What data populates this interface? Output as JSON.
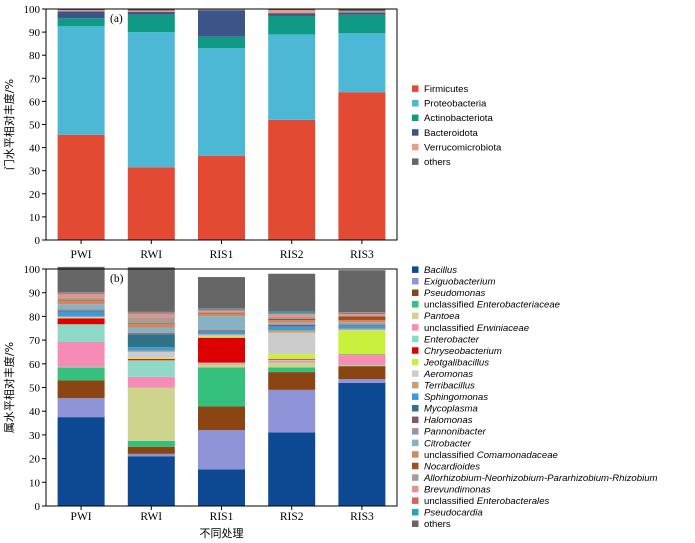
{
  "chart_data": [
    {
      "panel_label": "(a)",
      "type": "bar",
      "stacked": true,
      "ylabel": "门水平相对丰度/%",
      "ylim": [
        0,
        100
      ],
      "yticks": [
        0,
        10,
        20,
        30,
        40,
        50,
        60,
        70,
        80,
        90,
        100
      ],
      "categories": [
        "PWI",
        "RWI",
        "RIS1",
        "RIS2",
        "RIS3"
      ],
      "series": [
        {
          "name": "Firmicutes",
          "color": "#E34A33",
          "values": [
            45.5,
            31.5,
            36.5,
            52,
            64
          ]
        },
        {
          "name": "Proteobacteria",
          "color": "#4DB8D6",
          "values": [
            47,
            58.5,
            46.5,
            37,
            25.5
          ]
        },
        {
          "name": "Actinobacteriota",
          "color": "#0E9A84",
          "values": [
            3.5,
            7.5,
            5,
            8,
            8
          ]
        },
        {
          "name": "Bacteroidota",
          "color": "#3C5588",
          "values": [
            3,
            1.2,
            11.5,
            1.2,
            1
          ]
        },
        {
          "name": "Verrucomicrobiota",
          "color": "#F09A84",
          "values": [
            0.5,
            0.6,
            0.2,
            1.3,
            0.5
          ]
        },
        {
          "name": "others",
          "color": "#666666",
          "values": [
            0.5,
            0.7,
            0.3,
            0.5,
            1
          ]
        }
      ]
    },
    {
      "panel_label": "(b)",
      "type": "bar",
      "stacked": true,
      "ylabel": "属水平相对丰度/%",
      "xlabel": "不同处理",
      "ylim": [
        0,
        100
      ],
      "yticks": [
        0,
        10,
        20,
        30,
        40,
        50,
        60,
        70,
        80,
        90,
        100
      ],
      "categories": [
        "PWI",
        "RWI",
        "RIS1",
        "RIS2",
        "RIS3"
      ],
      "series": [
        {
          "prefix": "",
          "name": "Bacillus",
          "italic": true,
          "color": "#0E4A94",
          "values": [
            37.5,
            21,
            15.5,
            31,
            52
          ]
        },
        {
          "prefix": "",
          "name": "Exiguobacterium",
          "italic": true,
          "color": "#8F94D9",
          "values": [
            8,
            1,
            16.5,
            18,
            1.5
          ]
        },
        {
          "prefix": "",
          "name": "Pseudomonas",
          "italic": true,
          "color": "#8B4513",
          "values": [
            7.5,
            3,
            10,
            7.5,
            5.5
          ]
        },
        {
          "prefix": "unclassified ",
          "name": "Enterobacteriaceae",
          "italic": true,
          "color": "#35C07D",
          "values": [
            5.5,
            2.5,
            16.5,
            2,
            0.2
          ]
        },
        {
          "prefix": "",
          "name": "Pantoea",
          "italic": true,
          "color": "#CED48C",
          "values": [
            0.2,
            22.5,
            1.2,
            2,
            0.3
          ]
        },
        {
          "prefix": "unclassified ",
          "name": "Erwiniaceae",
          "italic": true,
          "color": "#F48CB6",
          "values": [
            10.5,
            4.5,
            0.5,
            0.8,
            4
          ]
        },
        {
          "prefix": "",
          "name": "Enterobacter",
          "italic": true,
          "color": "#8ED8C8",
          "values": [
            7.5,
            7,
            0.3,
            0.5,
            0.3
          ]
        },
        {
          "prefix": "",
          "name": "Chryseobacterium",
          "italic": true,
          "color": "#DD0000",
          "values": [
            2.5,
            0.5,
            10.5,
            0.3,
            0.2
          ]
        },
        {
          "prefix": "",
          "name": "Jeotgalibacillus",
          "italic": true,
          "color": "#C8F03C",
          "values": [
            0.2,
            0.5,
            0.5,
            2,
            10
          ]
        },
        {
          "prefix": "",
          "name": "Aeromonas",
          "italic": true,
          "color": "#CCCCCC",
          "values": [
            0.3,
            2.5,
            0.5,
            9,
            0.3
          ]
        },
        {
          "prefix": "",
          "name": "Terribacillus",
          "italic": true,
          "color": "#C8A070",
          "values": [
            0.3,
            0.5,
            0.5,
            1,
            0.5
          ]
        },
        {
          "prefix": "",
          "name": "Sphingomonas",
          "italic": true,
          "color": "#3B9CDB",
          "values": [
            2,
            1.5,
            1,
            1.5,
            1.2
          ]
        },
        {
          "prefix": "",
          "name": "Mycoplasma",
          "italic": true,
          "color": "#2E7388",
          "values": [
            0.3,
            5.5,
            0.3,
            0.3,
            0.2
          ]
        },
        {
          "prefix": "",
          "name": "Halomonas",
          "italic": true,
          "color": "#7F5A63",
          "values": [
            0.3,
            0.3,
            0.3,
            0.5,
            0.3
          ]
        },
        {
          "prefix": "",
          "name": "Pannonibacter",
          "italic": true,
          "color": "#9F8FAF",
          "values": [
            0.5,
            0.5,
            0.5,
            0.5,
            0.5
          ]
        },
        {
          "prefix": "",
          "name": "Citrobacter",
          "italic": true,
          "color": "#86B3C3",
          "values": [
            2,
            2,
            5.5,
            0.5,
            0.5
          ]
        },
        {
          "prefix": "unclassified ",
          "name": "Comamonadaceae",
          "italic": true,
          "color": "#D08860",
          "values": [
            1.5,
            1.5,
            1,
            1,
            1
          ]
        },
        {
          "prefix": "",
          "name": "Nocardioides",
          "italic": true,
          "color": "#A64B1E",
          "values": [
            0.3,
            0.3,
            0.3,
            0.5,
            1.5
          ]
        },
        {
          "prefix": "",
          "name": "Allorhizobium-Neorhizobium-Pararhizobium-Rhizobium",
          "italic": true,
          "color": "#A89C99",
          "values": [
            1,
            2.5,
            0.5,
            1,
            0.5
          ]
        },
        {
          "prefix": "",
          "name": "Brevundimonas",
          "italic": true,
          "color": "#E0958A",
          "values": [
            1.5,
            1.5,
            0.5,
            1,
            0.5
          ]
        },
        {
          "prefix": "unclassified ",
          "name": "Enterobacterales",
          "italic": true,
          "color": "#D9625A",
          "values": [
            0.5,
            0.5,
            0.5,
            0.3,
            0.5
          ]
        },
        {
          "prefix": "",
          "name": "Pseudocardia",
          "italic": true,
          "color": "#22A6B8",
          "values": [
            0.3,
            0.3,
            0.5,
            0.8,
            0.3
          ]
        },
        {
          "prefix": "",
          "name": "others",
          "italic": false,
          "color": "#666666",
          "values": [
            10.7,
            18.8,
            13.2,
            16,
            17.7
          ]
        }
      ]
    }
  ]
}
